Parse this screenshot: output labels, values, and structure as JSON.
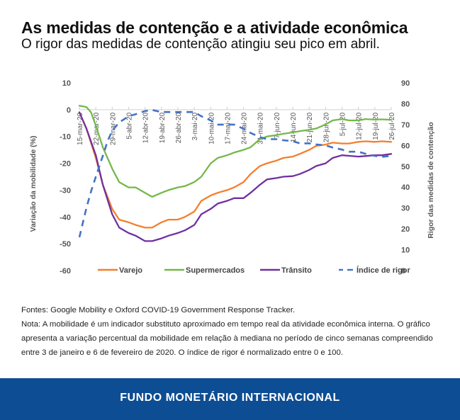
{
  "header": {
    "title": "As medidas de contenção e a atividade econômica",
    "subtitle": "O rigor das medidas de contenção atingiu seu pico em abril."
  },
  "chart_data": {
    "type": "line",
    "title": "As medidas de contenção e a atividade econômica",
    "ylabel": "Variação da mobilidade (%)",
    "y2label": "Rigor das medidas de contenção",
    "ylim": [
      -60,
      10
    ],
    "y2lim": [
      0,
      90
    ],
    "yticks": [
      10,
      0,
      -10,
      -20,
      -30,
      -40,
      -50,
      -60
    ],
    "y2ticks": [
      90,
      80,
      70,
      60,
      50,
      40,
      30,
      20,
      10,
      0
    ],
    "x_start": "15-mar-20",
    "x_days_total": 133,
    "xtick_labels": [
      "15-mar-20",
      "22-mar-20",
      "29-mar-20",
      "5-abr-20",
      "12-abr-20",
      "19-abr-20",
      "26-abr-20",
      "3-mai-20",
      "10-mai-20",
      "17-mai-20",
      "24-mai-20",
      "31-mai-20",
      "7-jun-20",
      "14-jun-20",
      "21-jun-20",
      "28-jun-20",
      "5-jul-20",
      "12-jul-20",
      "19-jul-20",
      "26-jul-20"
    ],
    "legend_position": "bottom",
    "grid": false,
    "series": [
      {
        "name": "Varejo",
        "axis": "left",
        "color": "#f47f2d",
        "dash": false,
        "x_days": [
          0,
          3,
          7,
          10,
          14,
          17,
          21,
          24,
          28,
          31,
          35,
          38,
          42,
          45,
          49,
          52,
          56,
          59,
          63,
          66,
          70,
          73,
          77,
          80,
          84,
          87,
          91,
          94,
          98,
          101,
          105,
          108,
          112,
          115,
          119,
          122,
          126,
          129,
          133
        ],
        "values": [
          -1,
          -7,
          -18,
          -28,
          -37,
          -41,
          -42,
          -43,
          -44,
          -44,
          -42,
          -41,
          -41,
          -40,
          -38,
          -34,
          -32,
          -31,
          -30,
          -29,
          -27,
          -24,
          -21,
          -20,
          -19,
          -18,
          -17.5,
          -16.5,
          -15,
          -13.5,
          -13,
          -12.3,
          -12.6,
          -12.6,
          -12,
          -11.8,
          -12,
          -11.8,
          -12
        ]
      },
      {
        "name": "Supermercados",
        "axis": "left",
        "color": "#74b84a",
        "dash": false,
        "x_days": [
          0,
          3,
          5,
          7,
          10,
          14,
          17,
          21,
          24,
          28,
          31,
          35,
          38,
          42,
          45,
          49,
          52,
          56,
          59,
          63,
          66,
          70,
          73,
          77,
          80,
          84,
          87,
          91,
          94,
          98,
          101,
          105,
          108,
          112,
          115,
          119,
          122,
          126,
          129,
          133
        ],
        "values": [
          1.5,
          1,
          -1,
          -6,
          -14,
          -22,
          -27,
          -29,
          -29,
          -31,
          -32.5,
          -31,
          -30,
          -29,
          -28.5,
          -27,
          -25,
          -20,
          -18,
          -17,
          -16,
          -15,
          -14,
          -11,
          -10,
          -9.5,
          -9,
          -8.5,
          -8,
          -7.5,
          -7,
          -5.5,
          -4,
          -3.5,
          -4,
          -4,
          -3.5,
          -3.7,
          -3.6,
          -3.8
        ]
      },
      {
        "name": "Trânsito",
        "axis": "left",
        "color": "#7030a0",
        "dash": false,
        "x_days": [
          0,
          3,
          7,
          10,
          14,
          17,
          21,
          24,
          28,
          31,
          35,
          38,
          42,
          45,
          49,
          52,
          56,
          59,
          63,
          66,
          70,
          73,
          77,
          80,
          84,
          87,
          91,
          94,
          98,
          101,
          105,
          108,
          112,
          115,
          119,
          122,
          126,
          129,
          133
        ],
        "values": [
          -1,
          -7,
          -17,
          -28,
          -39,
          -44,
          -46,
          -47,
          -49,
          -49,
          -48,
          -47,
          -46,
          -45,
          -43,
          -39,
          -37,
          -35,
          -34,
          -33,
          -33,
          -31,
          -28,
          -26,
          -25.5,
          -25,
          -24.8,
          -24,
          -22.5,
          -21,
          -20,
          -18,
          -17,
          -17.2,
          -17.5,
          -17.3,
          -17,
          -17,
          -16.5
        ]
      },
      {
        "name": "Índice de rigor",
        "axis": "right",
        "color": "#4472c4",
        "dash": true,
        "x_days": [
          0,
          3,
          5,
          7,
          10,
          12,
          14,
          17,
          21,
          24,
          28,
          31,
          35,
          38,
          42,
          45,
          49,
          52,
          56,
          59,
          63,
          66,
          70,
          73,
          77,
          80,
          84,
          87,
          91,
          94,
          98,
          101,
          105,
          108,
          112,
          115,
          119,
          122,
          126,
          129,
          133
        ],
        "values": [
          16,
          30,
          38,
          45,
          55,
          62,
          67,
          71,
          74,
          75,
          76.5,
          77,
          76,
          76,
          76,
          76,
          76,
          74,
          72,
          70,
          70,
          70,
          68,
          66,
          64,
          63,
          63,
          62.5,
          62,
          61,
          61,
          60.5,
          60,
          59,
          58,
          57,
          57,
          56,
          55,
          54.5,
          55
        ]
      }
    ]
  },
  "notes": {
    "sources": "Fontes: Google Mobility e Oxford COVID-19 Government Response Tracker.",
    "note": "Nota: A mobilidade é um indicador substituto aproximado em tempo real da atividade econômica interna. O gráfico apresenta a variação percentual da mobilidade em relação à mediana no período de cinco semanas compreendido entre 3 de janeiro e 6 de fevereiro de 2020. O índice de rigor é normalizado entre 0 e 100."
  },
  "footer": {
    "label": "FUNDO MONETÁRIO INTERNACIONAL",
    "background": "#0d4d93"
  }
}
